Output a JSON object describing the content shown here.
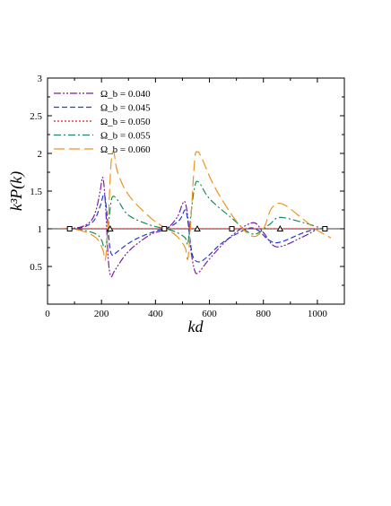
{
  "chart_data": {
    "type": "line",
    "xlabel": "kd",
    "ylabel": "k³P(k)",
    "xlim": [
      0,
      1100
    ],
    "ylim": [
      0,
      3
    ],
    "xticks": [
      0,
      200,
      400,
      600,
      800,
      1000
    ],
    "yticks": [
      0.5,
      1,
      1.5,
      2,
      2.5,
      3
    ],
    "xtick_labels": [
      "0",
      "200",
      "400",
      "600",
      "800",
      "1000"
    ],
    "ytick_labels": [
      "0.5",
      "1",
      "1.5",
      "2",
      "2.5",
      "3"
    ],
    "grid": false,
    "legend_position": "top-left",
    "series": [
      {
        "name": "Ω_b = 0.040",
        "color": "#7b1fa2",
        "dash": "dash-dot-dot",
        "x": [
          50,
          120,
          160,
          180,
          195,
          205,
          215,
          225,
          235,
          250,
          300,
          380,
          440,
          480,
          500,
          510,
          520,
          530,
          545,
          560,
          600,
          680,
          760,
          800,
          850,
          950,
          1000
        ],
        "y": [
          1.0,
          1.02,
          1.1,
          1.25,
          1.5,
          1.68,
          1.3,
          0.6,
          0.37,
          0.45,
          0.7,
          0.92,
          1.0,
          1.15,
          1.33,
          1.35,
          1.15,
          0.75,
          0.45,
          0.42,
          0.6,
          0.9,
          1.08,
          0.95,
          0.76,
          0.9,
          1.0
        ]
      },
      {
        "name": "Ω_b = 0.045",
        "color": "#1f3fd6",
        "dash": "dash",
        "x": [
          50,
          120,
          170,
          195,
          210,
          220,
          230,
          240,
          260,
          320,
          400,
          450,
          490,
          510,
          520,
          530,
          540,
          560,
          590,
          650,
          740,
          780,
          820,
          860,
          950,
          1000
        ],
        "y": [
          1.0,
          1.01,
          1.1,
          1.3,
          1.46,
          1.2,
          0.78,
          0.65,
          0.7,
          0.85,
          0.97,
          1.02,
          1.12,
          1.25,
          1.1,
          0.8,
          0.62,
          0.56,
          0.62,
          0.82,
          1.0,
          0.98,
          0.85,
          0.82,
          0.95,
          1.0
        ]
      },
      {
        "name": "Ω_b = 0.050",
        "color": "#e02020",
        "dash": "dot",
        "x": [
          80,
          1030
        ],
        "y": [
          1.0,
          1.0
        ]
      },
      {
        "name": "Ω_b = 0.055",
        "color": "#1a8a5a",
        "dash": "dash-dot",
        "x": [
          50,
          120,
          180,
          200,
          210,
          220,
          230,
          240,
          260,
          300,
          380,
          440,
          480,
          510,
          520,
          530,
          545,
          560,
          600,
          680,
          760,
          820,
          860,
          950,
          1020
        ],
        "y": [
          1.0,
          0.99,
          0.93,
          0.85,
          0.75,
          0.85,
          1.2,
          1.42,
          1.38,
          1.18,
          1.05,
          1.0,
          0.95,
          0.88,
          0.8,
          1.15,
          1.55,
          1.62,
          1.4,
          1.15,
          0.93,
          1.05,
          1.15,
          1.08,
          1.0
        ]
      },
      {
        "name": "Ω_b = 0.060",
        "color": "#f0921e",
        "dash": "long-dash",
        "x": [
          50,
          120,
          180,
          205,
          215,
          225,
          235,
          245,
          260,
          300,
          380,
          440,
          480,
          510,
          520,
          530,
          545,
          555,
          570,
          620,
          700,
          760,
          800,
          830,
          870,
          950,
          1000,
          1050
        ],
        "y": [
          1.0,
          0.98,
          0.88,
          0.72,
          0.6,
          1.1,
          1.85,
          2.02,
          1.75,
          1.45,
          1.15,
          1.0,
          0.9,
          0.75,
          0.6,
          1.05,
          1.9,
          2.02,
          1.95,
          1.55,
          1.1,
          0.9,
          1.0,
          1.27,
          1.33,
          1.12,
          0.98,
          0.88
        ]
      }
    ],
    "markers": [
      {
        "symbol": "square",
        "x": [
          82,
          433,
          683,
          1028
        ],
        "y": [
          1.0,
          1.0,
          1.0,
          1.0
        ]
      },
      {
        "symbol": "triangle",
        "x": [
          232,
          555,
          862
        ],
        "y": [
          1.0,
          1.0,
          1.0
        ]
      }
    ]
  }
}
